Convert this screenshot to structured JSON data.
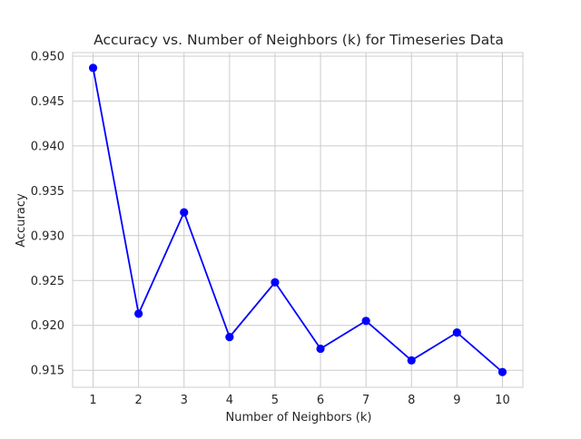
{
  "chart_data": {
    "type": "line",
    "title": "Accuracy vs. Number of Neighbors (k) for Timeseries Data",
    "xlabel": "Number of Neighbors (k)",
    "ylabel": "Accuracy",
    "x": [
      1,
      2,
      3,
      4,
      5,
      6,
      7,
      8,
      9,
      10
    ],
    "series": [
      {
        "values": [
          0.9487,
          0.9213,
          0.9326,
          0.9187,
          0.9248,
          0.9174,
          0.9205,
          0.9161,
          0.9192,
          0.9148
        ],
        "color": "#0000ff",
        "marker": "circle"
      }
    ],
    "xticks": [
      "1",
      "2",
      "3",
      "4",
      "5",
      "6",
      "7",
      "8",
      "9",
      "10"
    ],
    "yticks": [
      "0.915",
      "0.920",
      "0.925",
      "0.930",
      "0.935",
      "0.940",
      "0.945",
      "0.950"
    ],
    "xlim": [
      0.55,
      10.45
    ],
    "ylim": [
      0.9131,
      0.9504
    ],
    "grid": true,
    "colors": {
      "line": "#0000ff",
      "grid": "#cccccc",
      "axes": "#cccccc",
      "text": "#262626"
    }
  }
}
